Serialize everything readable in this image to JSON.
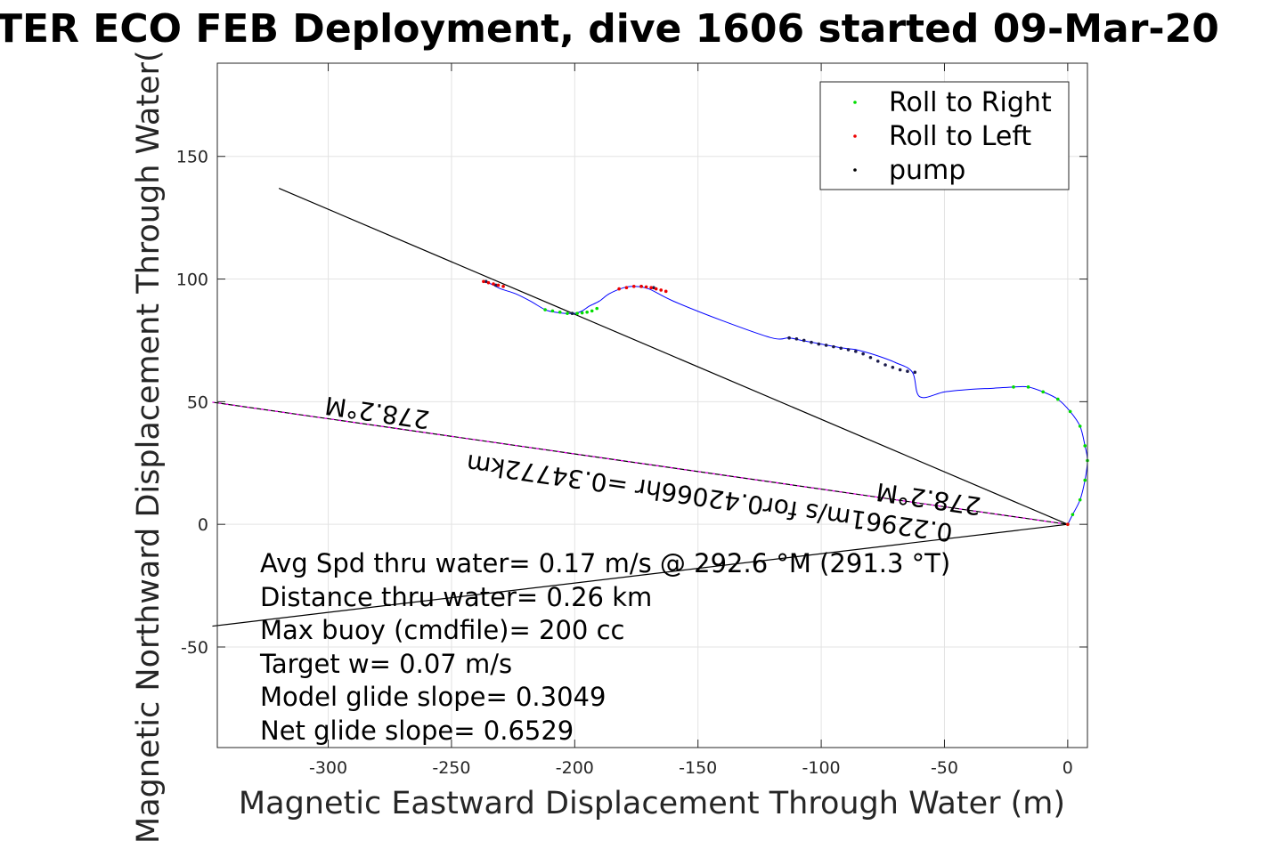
{
  "chart_data": {
    "type": "line",
    "title": "TER ECO FEB Deployment, dive 1606 started 09-Mar-20",
    "xlabel": "Magnetic Eastward Displacement Through Water (m)",
    "ylabel": "Magnetic Northward Displacement Through Water(",
    "xlim": [
      -345,
      8
    ],
    "ylim": [
      -91,
      188
    ],
    "xticks": [
      -300,
      -250,
      -200,
      -150,
      -100,
      -50,
      0
    ],
    "yticks": [
      -50,
      0,
      50,
      100,
      150
    ],
    "xtick_labels": [
      "-300",
      "-250",
      "-200",
      "-150",
      "-100",
      "-50",
      "0"
    ],
    "ytick_labels": [
      "-50",
      "0",
      "50",
      "100",
      "150"
    ],
    "grid": true,
    "legend": {
      "placement": "top-right",
      "entries": [
        {
          "label": "Roll to Right",
          "color": "#00dd00"
        },
        {
          "label": "Roll to Left",
          "color": "#ee0000"
        },
        {
          "label": "pump",
          "color": "#000000"
        }
      ]
    },
    "track": {
      "name": "glider track",
      "color": "#0000ff",
      "x": [
        0,
        2,
        5,
        7,
        8,
        7,
        5,
        1,
        -4,
        -10,
        -16,
        -22,
        -30,
        -40,
        -50,
        -60,
        -63,
        -70,
        -78,
        -85,
        -88,
        -92,
        -100,
        -108,
        -113,
        -120,
        -140,
        -160,
        -170,
        -176,
        -180,
        -186,
        -190,
        -194,
        -197,
        -200,
        -204,
        -208,
        -212,
        -218,
        -224,
        -230,
        -234,
        -237
      ],
      "y": [
        0,
        4,
        10,
        18,
        26,
        32,
        40,
        46,
        51,
        54,
        56,
        56,
        55.5,
        55,
        54,
        52,
        62,
        66,
        69,
        71,
        71.5,
        72,
        73.5,
        75,
        76,
        76,
        83,
        91,
        96,
        97,
        96.5,
        94,
        91,
        89,
        87,
        86,
        86,
        86.5,
        87.5,
        91,
        94,
        96,
        98,
        99
      ]
    },
    "roll_right_points": [
      {
        "x": [
          0,
          2,
          5,
          7,
          8,
          7,
          5,
          1,
          -4,
          -10,
          -16,
          -22
        ],
        "y": [
          0,
          4,
          10,
          18,
          26,
          32,
          40,
          46,
          51,
          54,
          56,
          56
        ]
      },
      {
        "x": [
          -212,
          -209,
          -206,
          -203,
          -201,
          -199,
          -197,
          -195,
          -193,
          -191
        ],
        "y": [
          87.5,
          87,
          86.5,
          86,
          86,
          86,
          86.2,
          86.5,
          87,
          88
        ]
      }
    ],
    "roll_left_points": [
      {
        "x": [
          -237,
          -235,
          -233,
          -231,
          -229
        ],
        "y": [
          99,
          98.5,
          98,
          97.5,
          97
        ]
      },
      {
        "x": [
          -182,
          -179,
          -176,
          -173,
          -171,
          -169,
          -167,
          -165,
          -163
        ],
        "y": [
          96,
          96.5,
          97,
          97,
          96.8,
          96.5,
          96,
          95.5,
          95
        ]
      },
      {
        "x": [
          0
        ],
        "y": [
          0
        ]
      }
    ],
    "pump_points": [
      {
        "x": [
          -113,
          -110,
          -107,
          -104,
          -101,
          -98,
          -95,
          -92,
          -89,
          -86,
          -83,
          -80,
          -77,
          -74,
          -71,
          -68,
          -65,
          -62
        ],
        "y": [
          76,
          75.6,
          75,
          74.2,
          73.5,
          73,
          72.4,
          71.8,
          71.2,
          70.5,
          69.5,
          68,
          66.5,
          65,
          64,
          63,
          62.4,
          62
        ]
      },
      {
        "x": [
          -236,
          -232
        ],
        "y": [
          99,
          97.5
        ]
      },
      {
        "x": [
          -173,
          -168
        ],
        "y": [
          97,
          96.5
        ]
      },
      {
        "x": [
          -201
        ],
        "y": [
          86
        ]
      }
    ],
    "reference_lines": [
      {
        "name": "heading-line-278",
        "color": "#000000",
        "x": [
          0,
          -347
        ],
        "y": [
          0,
          49.8
        ]
      },
      {
        "name": "heading-line-magenta",
        "color": "#ff00ff",
        "x": [
          0,
          -347
        ],
        "y": [
          0,
          49.8
        ]
      },
      {
        "name": "glide-line-a",
        "color": "#000000",
        "x": [
          0,
          -320
        ],
        "y": [
          0,
          137
        ]
      },
      {
        "name": "glide-line-b",
        "color": "#000000",
        "x": [
          0,
          -347
        ],
        "y": [
          0,
          -41.5
        ]
      }
    ],
    "annotations": {
      "heading_left": "278.2°M",
      "heading_right": "278.2°M",
      "current": "0.22961m/s for0.42066hr =0.34772km",
      "stats": [
        "Avg Spd thru water=  0.17 m/s @ 292.6 °M (291.3 °T)",
        "Distance thru water=  0.26 km",
        "Max buoy (cmdfile)= 200 cc",
        "Target w= 0.07 m/s",
        "Model glide slope= 0.3049",
        "Net glide slope= 0.6529"
      ]
    }
  }
}
